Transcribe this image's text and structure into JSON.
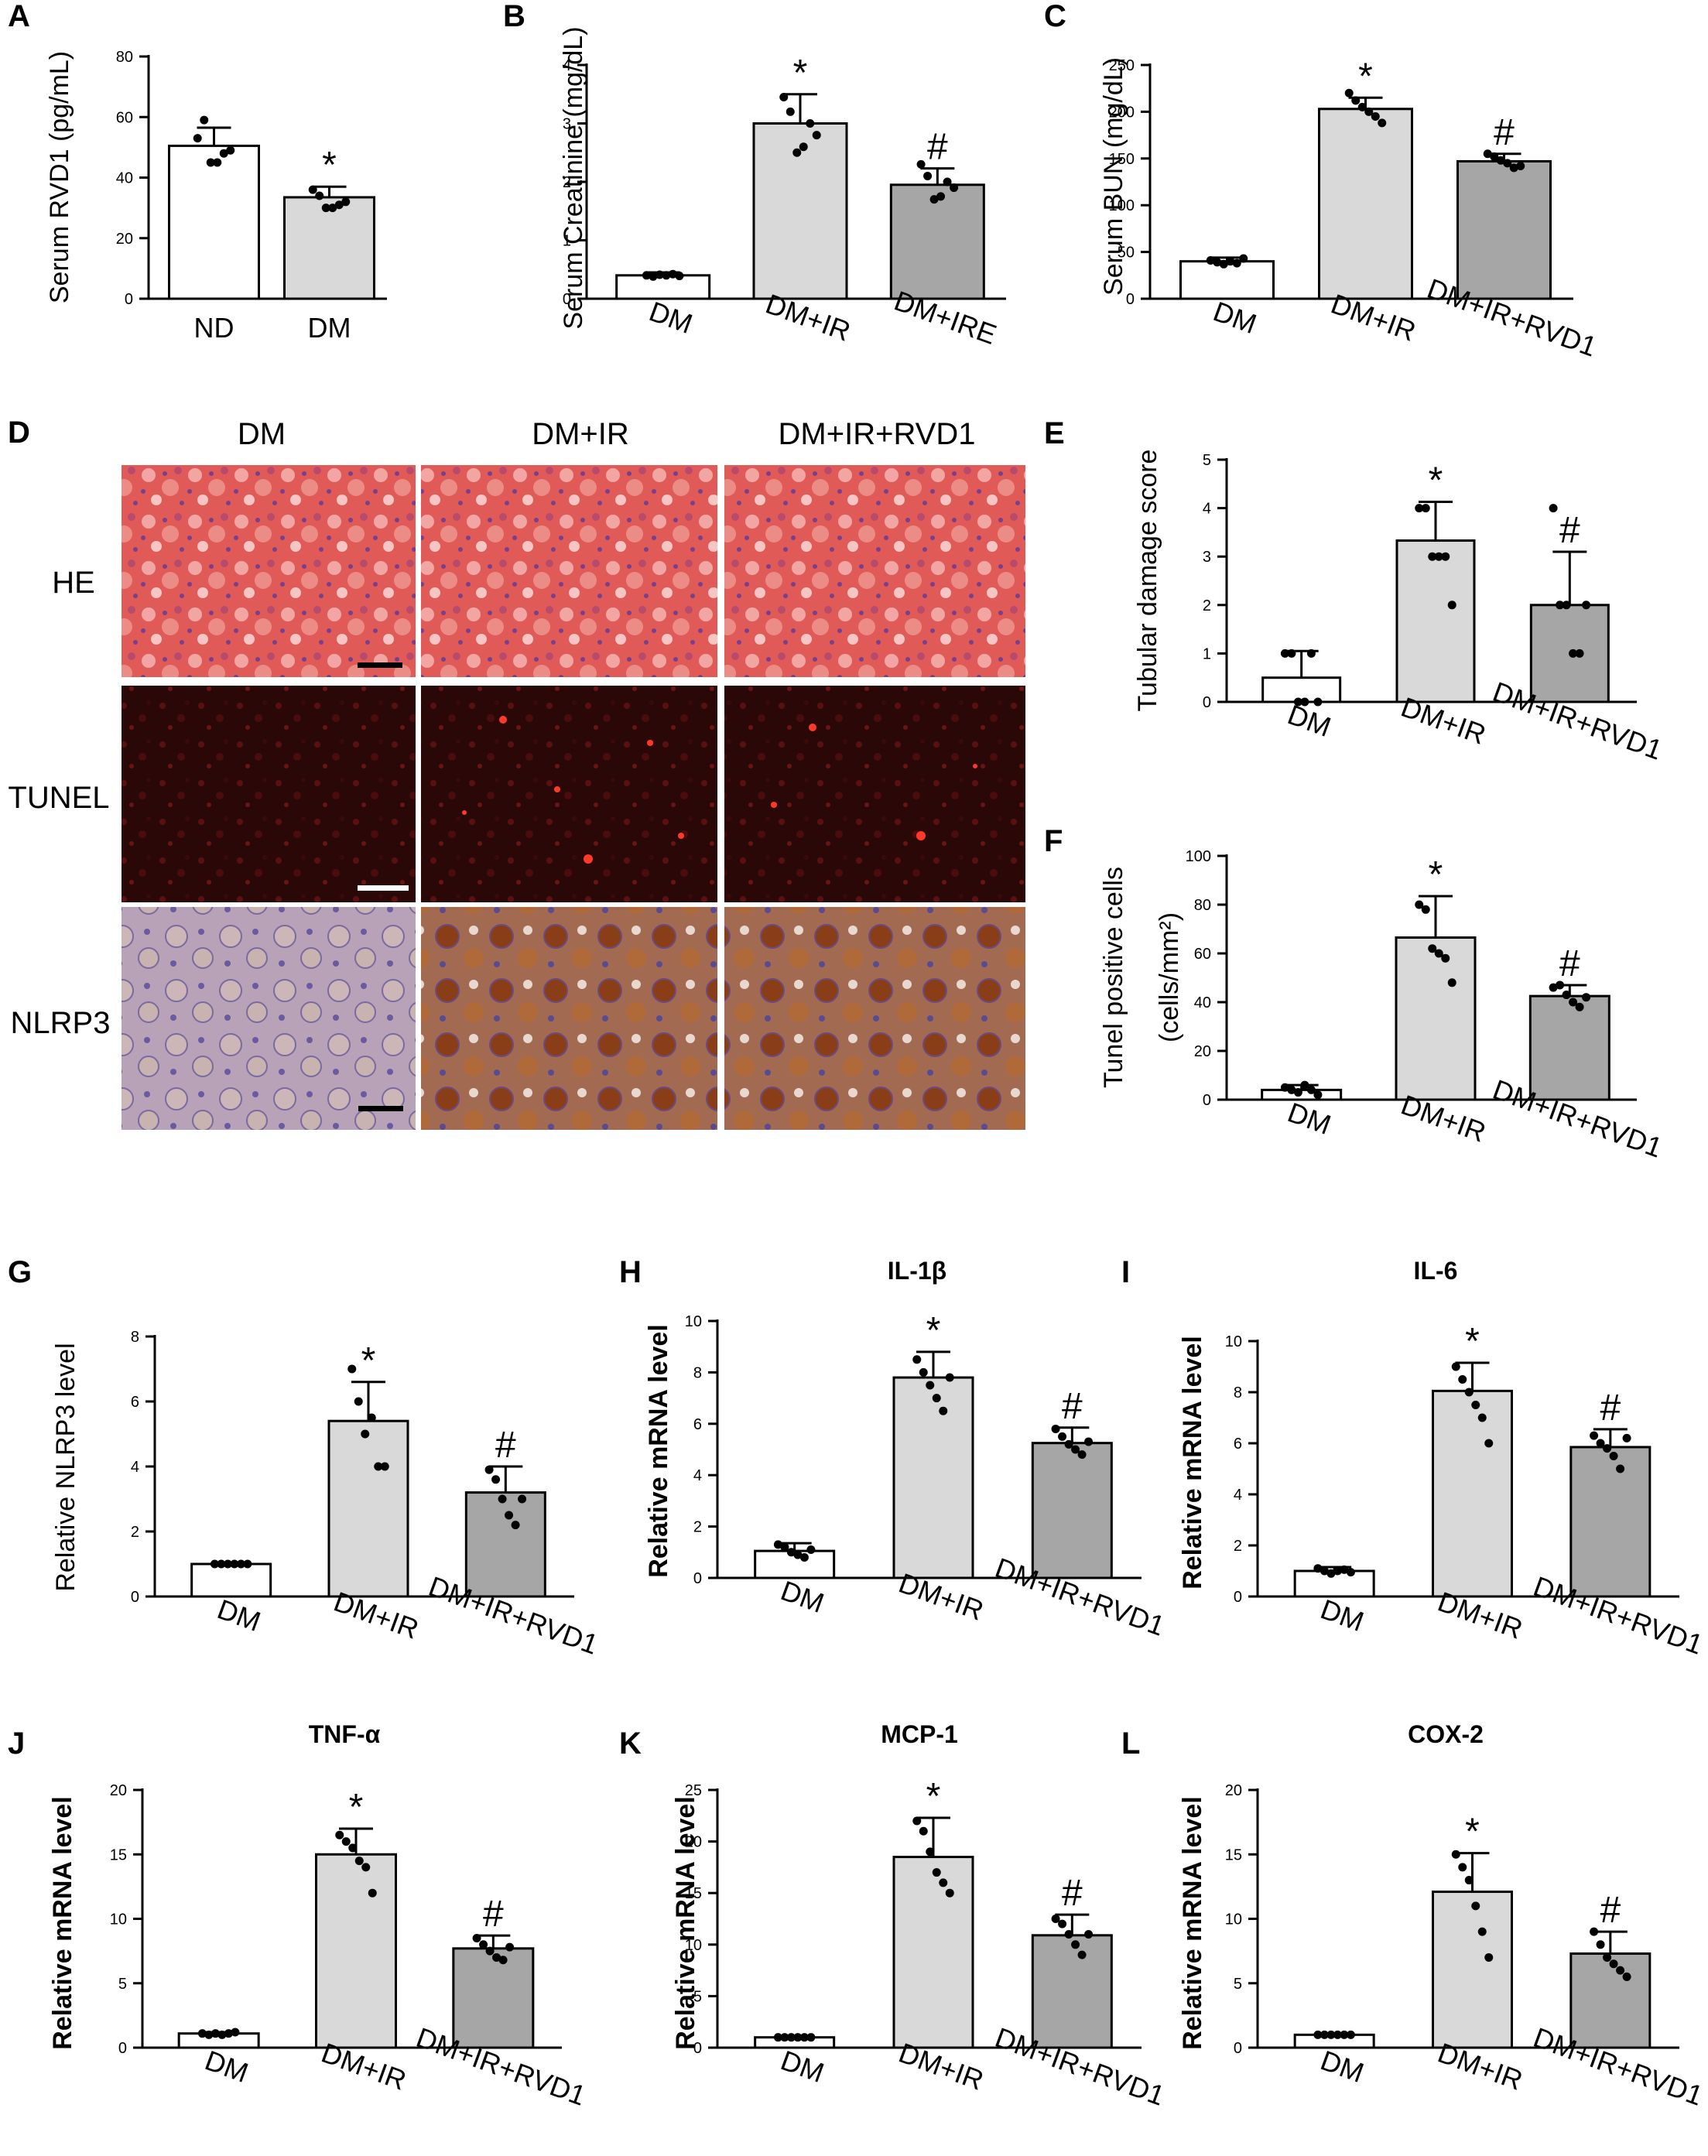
{
  "figure": {
    "micrographs": {
      "label": "D",
      "columns": [
        "DM",
        "DM+IR",
        "DM+IR+RVD1"
      ],
      "rows": [
        "HE",
        "TUNEL",
        "NLRP3"
      ]
    }
  },
  "chart_data": [
    {
      "id": "A",
      "type": "bar",
      "title": "",
      "ylabel": "Serum RVD1 (pg/mL)",
      "ylim": [
        0,
        80
      ],
      "yticks": [
        0,
        20,
        40,
        60,
        80
      ],
      "categories": [
        "ND",
        "DM"
      ],
      "values": [
        50.5,
        33.5
      ],
      "sd": [
        6,
        3.5
      ],
      "colors": [
        "#ffffff",
        "#d9d9d9"
      ],
      "points": [
        [
          53,
          59,
          45,
          45,
          48,
          49
        ],
        [
          36,
          34,
          30,
          30,
          31,
          32
        ]
      ],
      "markers": [
        "",
        "*"
      ],
      "rot": false
    },
    {
      "id": "B",
      "type": "bar",
      "title": "",
      "ylabel": "Serum Creatinine (mg/dL)",
      "ylim": [
        0,
        4
      ],
      "yticks": [
        0,
        1,
        2,
        3,
        4
      ],
      "categories": [
        "DM",
        "DM+IR",
        "DM+IRE"
      ],
      "values": [
        0.4,
        3.0,
        1.95
      ],
      "sd": [
        0.05,
        0.5,
        0.28
      ],
      "colors": [
        "#ffffff",
        "#d9d9d9",
        "#a6a6a6"
      ],
      "points": [
        [
          0.4,
          0.38,
          0.41,
          0.4,
          0.42,
          0.39
        ],
        [
          3.45,
          3.2,
          2.5,
          2.6,
          3.0,
          2.8
        ],
        [
          2.3,
          2.1,
          1.7,
          1.75,
          2.0,
          1.9
        ]
      ],
      "markers": [
        "",
        "*",
        "#"
      ],
      "rot": true
    },
    {
      "id": "C",
      "type": "bar",
      "title": "",
      "ylabel": "Serum BUN (mg/dL)",
      "ylim": [
        0,
        250
      ],
      "yticks": [
        0,
        50,
        100,
        150,
        200,
        250
      ],
      "categories": [
        "DM",
        "DM+IR",
        "DM+IR+RVD1"
      ],
      "values": [
        40,
        203,
        147
      ],
      "sd": [
        4,
        12,
        8
      ],
      "colors": [
        "#ffffff",
        "#d9d9d9",
        "#a6a6a6"
      ],
      "points": [
        [
          41,
          39,
          37,
          40,
          38,
          43
        ],
        [
          220,
          212,
          205,
          200,
          195,
          188
        ],
        [
          155,
          152,
          148,
          145,
          140,
          142
        ]
      ],
      "markers": [
        "",
        "*",
        "#"
      ],
      "rot": true
    },
    {
      "id": "E",
      "type": "bar",
      "title": "",
      "ylabel": "Tubular damage score",
      "ylim": [
        0,
        5
      ],
      "yticks": [
        0,
        1,
        2,
        3,
        4,
        5
      ],
      "categories": [
        "DM",
        "DM+IR",
        "DM+IR+RVD1"
      ],
      "values": [
        0.5,
        3.33,
        2.0
      ],
      "sd": [
        0.55,
        0.8,
        1.1
      ],
      "colors": [
        "#ffffff",
        "#d9d9d9",
        "#a6a6a6"
      ],
      "points": [
        [
          1,
          1,
          0,
          0,
          1,
          0
        ],
        [
          4,
          4,
          3,
          3,
          3,
          2
        ],
        [
          4,
          2,
          2,
          1,
          1,
          2
        ]
      ],
      "markers": [
        "",
        "*",
        "#"
      ],
      "rot": true
    },
    {
      "id": "F",
      "type": "bar",
      "title": "",
      "ylabel": "Tunel positive cells",
      "ylabel2": "(cells/mm²)",
      "ylim": [
        0,
        100
      ],
      "yticks": [
        0,
        20,
        40,
        60,
        80,
        100
      ],
      "categories": [
        "DM",
        "DM+IR",
        "DM+IR+RVD1"
      ],
      "values": [
        4,
        66.5,
        42.5
      ],
      "sd": [
        2,
        17,
        4.5
      ],
      "colors": [
        "#ffffff",
        "#d9d9d9",
        "#a6a6a6"
      ],
      "points": [
        [
          5,
          4,
          3,
          6,
          4,
          2
        ],
        [
          80,
          78,
          62,
          60,
          58,
          48
        ],
        [
          46,
          47,
          43,
          40,
          38,
          42
        ]
      ],
      "markers": [
        "",
        "*",
        "#"
      ],
      "rot": true
    },
    {
      "id": "G",
      "type": "bar",
      "title": "",
      "ylabel": "Relative NLRP3 level",
      "ylim": [
        0,
        8
      ],
      "yticks": [
        0,
        2,
        4,
        6,
        8
      ],
      "categories": [
        "DM",
        "DM+IR",
        "DM+IR+RVD1"
      ],
      "values": [
        1.0,
        5.4,
        3.2
      ],
      "sd": [
        0.02,
        1.2,
        0.8
      ],
      "colors": [
        "#ffffff",
        "#d9d9d9",
        "#a6a6a6"
      ],
      "points": [
        [
          1,
          1,
          1,
          1,
          1,
          1
        ],
        [
          7.0,
          6.0,
          5.0,
          5.5,
          4.0,
          4.0
        ],
        [
          3.9,
          3.6,
          3.0,
          2.5,
          2.2,
          3.0
        ]
      ],
      "markers": [
        "",
        "*",
        "#"
      ],
      "rot": true
    },
    {
      "id": "H",
      "type": "bar",
      "title": "IL-1β",
      "ylabel": "Relative mRNA level",
      "ylim": [
        0,
        10
      ],
      "yticks": [
        0,
        2,
        4,
        6,
        8,
        10
      ],
      "categories": [
        "DM",
        "DM+IR",
        "DM+IR+RVD1"
      ],
      "values": [
        1.05,
        7.8,
        5.25
      ],
      "sd": [
        0.3,
        1.0,
        0.6
      ],
      "colors": [
        "#ffffff",
        "#d9d9d9",
        "#a6a6a6"
      ],
      "points": [
        [
          1.3,
          1.2,
          1.0,
          0.9,
          0.8,
          1.1
        ],
        [
          8.5,
          8.0,
          7.5,
          7.0,
          6.5,
          7.8
        ],
        [
          5.8,
          5.5,
          5.2,
          5.0,
          4.8,
          5.3
        ]
      ],
      "markers": [
        "",
        "*",
        "#"
      ],
      "rot": true
    },
    {
      "id": "I",
      "type": "bar",
      "title": "IL-6",
      "ylabel": "Relative mRNA level",
      "ylim": [
        0,
        10
      ],
      "yticks": [
        0,
        2,
        4,
        6,
        8,
        10
      ],
      "categories": [
        "DM",
        "DM+IR",
        "DM+IR+RVD1"
      ],
      "values": [
        1.0,
        8.05,
        5.85
      ],
      "sd": [
        0.15,
        1.1,
        0.7
      ],
      "colors": [
        "#ffffff",
        "#d9d9d9",
        "#a6a6a6"
      ],
      "points": [
        [
          1.1,
          1.0,
          0.9,
          1.0,
          1.05,
          0.95
        ],
        [
          9.0,
          8.5,
          8.0,
          7.5,
          7.0,
          6.0
        ],
        [
          6.3,
          6.0,
          5.8,
          5.5,
          5.0,
          6.2
        ]
      ],
      "markers": [
        "",
        "*",
        "#"
      ],
      "rot": true
    },
    {
      "id": "J",
      "type": "bar",
      "title": "TNF-α",
      "ylabel": "Relative mRNA level",
      "ylim": [
        0,
        20
      ],
      "yticks": [
        0,
        5,
        10,
        15,
        20
      ],
      "categories": [
        "DM",
        "DM+IR",
        "DM+IR+RVD1"
      ],
      "values": [
        1.1,
        15.0,
        7.7
      ],
      "sd": [
        0.1,
        2.0,
        1.0
      ],
      "colors": [
        "#ffffff",
        "#d9d9d9",
        "#a6a6a6"
      ],
      "points": [
        [
          1.1,
          1.0,
          1.1,
          1.0,
          1.1,
          1.2
        ],
        [
          16.5,
          16,
          15.5,
          14.5,
          14,
          12
        ],
        [
          8.5,
          8.0,
          7.5,
          7.0,
          6.8,
          7.8
        ]
      ],
      "markers": [
        "",
        "*",
        "#"
      ],
      "rot": true
    },
    {
      "id": "K",
      "type": "bar",
      "title": "MCP-1",
      "ylabel": "Relative mRNA level",
      "ylim": [
        0,
        25
      ],
      "yticks": [
        0,
        5,
        10,
        15,
        20,
        25
      ],
      "categories": [
        "DM",
        "DM+IR",
        "DM+IR+RVD1"
      ],
      "values": [
        1.0,
        18.5,
        10.9
      ],
      "sd": [
        0.05,
        3.8,
        2.0
      ],
      "colors": [
        "#ffffff",
        "#d9d9d9",
        "#a6a6a6"
      ],
      "points": [
        [
          1,
          1,
          1,
          1,
          1,
          1
        ],
        [
          22,
          21,
          19,
          17,
          16,
          15
        ],
        [
          12.5,
          12,
          11,
          10,
          9,
          11
        ]
      ],
      "markers": [
        "",
        "*",
        "#"
      ],
      "rot": true
    },
    {
      "id": "L",
      "type": "bar",
      "title": "COX-2",
      "ylabel": "Relative mRNA level",
      "ylim": [
        0,
        20
      ],
      "yticks": [
        0,
        5,
        10,
        15,
        20
      ],
      "categories": [
        "DM",
        "DM+IR",
        "DM+IR+RVD1"
      ],
      "values": [
        1.0,
        12.1,
        7.3
      ],
      "sd": [
        0.05,
        3.0,
        1.7
      ],
      "colors": [
        "#ffffff",
        "#d9d9d9",
        "#a6a6a6"
      ],
      "points": [
        [
          1,
          1,
          1,
          1,
          1,
          1
        ],
        [
          15,
          14,
          13,
          11,
          9,
          7
        ],
        [
          9,
          8,
          7,
          6.5,
          6,
          5.5
        ]
      ],
      "markers": [
        "",
        "*",
        "#"
      ],
      "rot": true
    }
  ]
}
